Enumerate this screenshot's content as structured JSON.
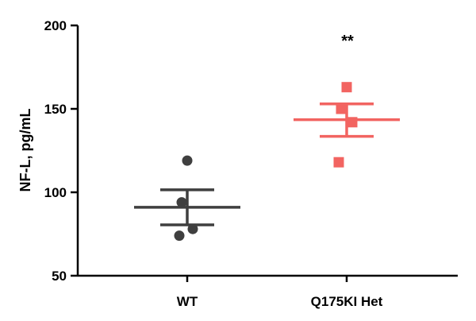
{
  "chart_data": {
    "type": "scatter",
    "title": "",
    "xlabel": "",
    "ylabel": "NF-L, pg/mL",
    "ylim": [
      50,
      200
    ],
    "yticks": [
      "50",
      "100",
      "150",
      "200"
    ],
    "ytick_values": [
      50,
      100,
      150,
      200
    ],
    "grid": false,
    "groups": [
      {
        "label": "WT",
        "color": "#3f3f3f",
        "marker": "circle",
        "points": [
          119,
          94,
          78,
          74
        ],
        "mean": 91,
        "sem_upper": 101.5,
        "sem_lower": 80.5
      },
      {
        "label": "Q175KI Het",
        "color": "#f26461",
        "marker": "square",
        "points": [
          163,
          150,
          142,
          118
        ],
        "mean": 143.5,
        "sem_upper": 153,
        "sem_lower": 133.5,
        "annotation": "**"
      }
    ]
  }
}
